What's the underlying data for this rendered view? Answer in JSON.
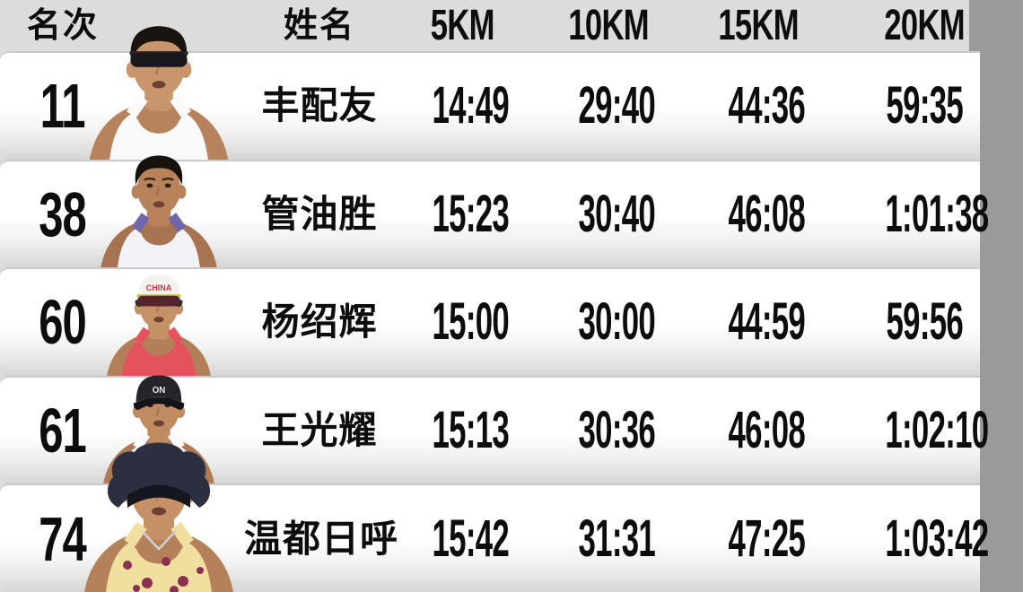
{
  "meta": {
    "description": "Marathon runners split-time results table with photo cutouts",
    "background_color": "#dcdcdc",
    "row_top_color": "#ffffff",
    "row_bottom_color": "#d6d6d6",
    "separator_color": "#c7cbce",
    "text_color": "#0d0d0d",
    "note_right_edge": "20KM column is clipped by the right image edge"
  },
  "chart_data": {
    "type": "table",
    "columns": [
      "名次",
      "姓名",
      "5KM",
      "10KM",
      "15KM",
      "20KM"
    ],
    "rows": [
      [
        "11",
        "丰配友",
        "14:49",
        "29:40",
        "44:36",
        "59:35"
      ],
      [
        "38",
        "管油胜",
        "15:23",
        "30:40",
        "46:08",
        "1:01:38"
      ],
      [
        "60",
        "杨绍辉",
        "15:00",
        "30:00",
        "44:59",
        "59:56"
      ],
      [
        "61",
        "王光耀",
        "15:13",
        "30:36",
        "46:08",
        "1:02:10"
      ],
      [
        "74",
        "温都日呼",
        "15:42",
        "31:31",
        "47:25",
        "1:03:42"
      ]
    ]
  },
  "table": {
    "headers": {
      "rank": "名次",
      "name": "姓名",
      "k5": "5KM",
      "k10": "10KM",
      "k15": "15KM",
      "k20": "20KM"
    },
    "rows": [
      {
        "rank": "11",
        "name": "丰配友",
        "k5": "14:49",
        "k10": "29:40",
        "k15": "44:36",
        "k20": "59:35",
        "avatar": {
          "variant": "sunglasses",
          "size": 160,
          "skin": "#c8956c",
          "skin_shadow": "#b7835c",
          "hair": "#1a1410",
          "top": "#fafafa",
          "strap": "#fafafa",
          "glasses": "#17171c",
          "glassbar": "#2a2420",
          "cap_text": ""
        }
      },
      {
        "rank": "38",
        "name": "管油胜",
        "k5": "15:23",
        "k10": "30:40",
        "k15": "46:08",
        "k20": "1:01:38",
        "avatar": {
          "variant": "plain",
          "size": 134,
          "skin": "#b8825a",
          "skin_shadow": "#a87350",
          "hair": "#17120e",
          "top": "#f3f2f7",
          "strap": "#6f66ab",
          "cap_text": ""
        }
      },
      {
        "rank": "60",
        "name": "杨绍辉",
        "k5": "15:00",
        "k10": "30:00",
        "k15": "44:59",
        "k20": "59:56",
        "avatar": {
          "variant": "cap-sunglasses",
          "size": 120,
          "skin": "#c59167",
          "skin_shadow": "#b37f59",
          "hair": "#1a1410",
          "top": "#e4525c",
          "strap": "#e4525c",
          "cap": "#f4f2ee",
          "brim": "#272e2a",
          "glasses": "#56242e",
          "glassbar": "#b9c43f",
          "cap_text": "CHINA",
          "cap_text_color": "#cc3344"
        }
      },
      {
        "rank": "61",
        "name": "王光耀",
        "k5": "15:13",
        "k10": "30:36",
        "k15": "46:08",
        "k20": "1:02:10",
        "avatar": {
          "variant": "cap",
          "size": 128,
          "skin": "#c08b60",
          "skin_shadow": "#af7b54",
          "hair": "#17120e",
          "top": "#fbfbfb",
          "strap": "#fbfbfb",
          "cap": "#24252b",
          "brim": "#131419",
          "cap_text": "ON",
          "cap_text_color": "#e8e8ea"
        }
      },
      {
        "rank": "74",
        "name": "温都日呼",
        "k5": "15:42",
        "k10": "31:31",
        "k15": "47:25",
        "k20": "1:03:42",
        "avatar": {
          "variant": "afro-headband",
          "size": 176,
          "skin": "#c69166",
          "skin_shadow": "#b5815a",
          "hair": "#2b2f40",
          "top": "#f1dfa0",
          "strap": "#f1dfa0",
          "band": "#15161e",
          "accent": "#8c3050",
          "necklace": "#cfd0d6",
          "cap_text": ""
        }
      }
    ]
  }
}
